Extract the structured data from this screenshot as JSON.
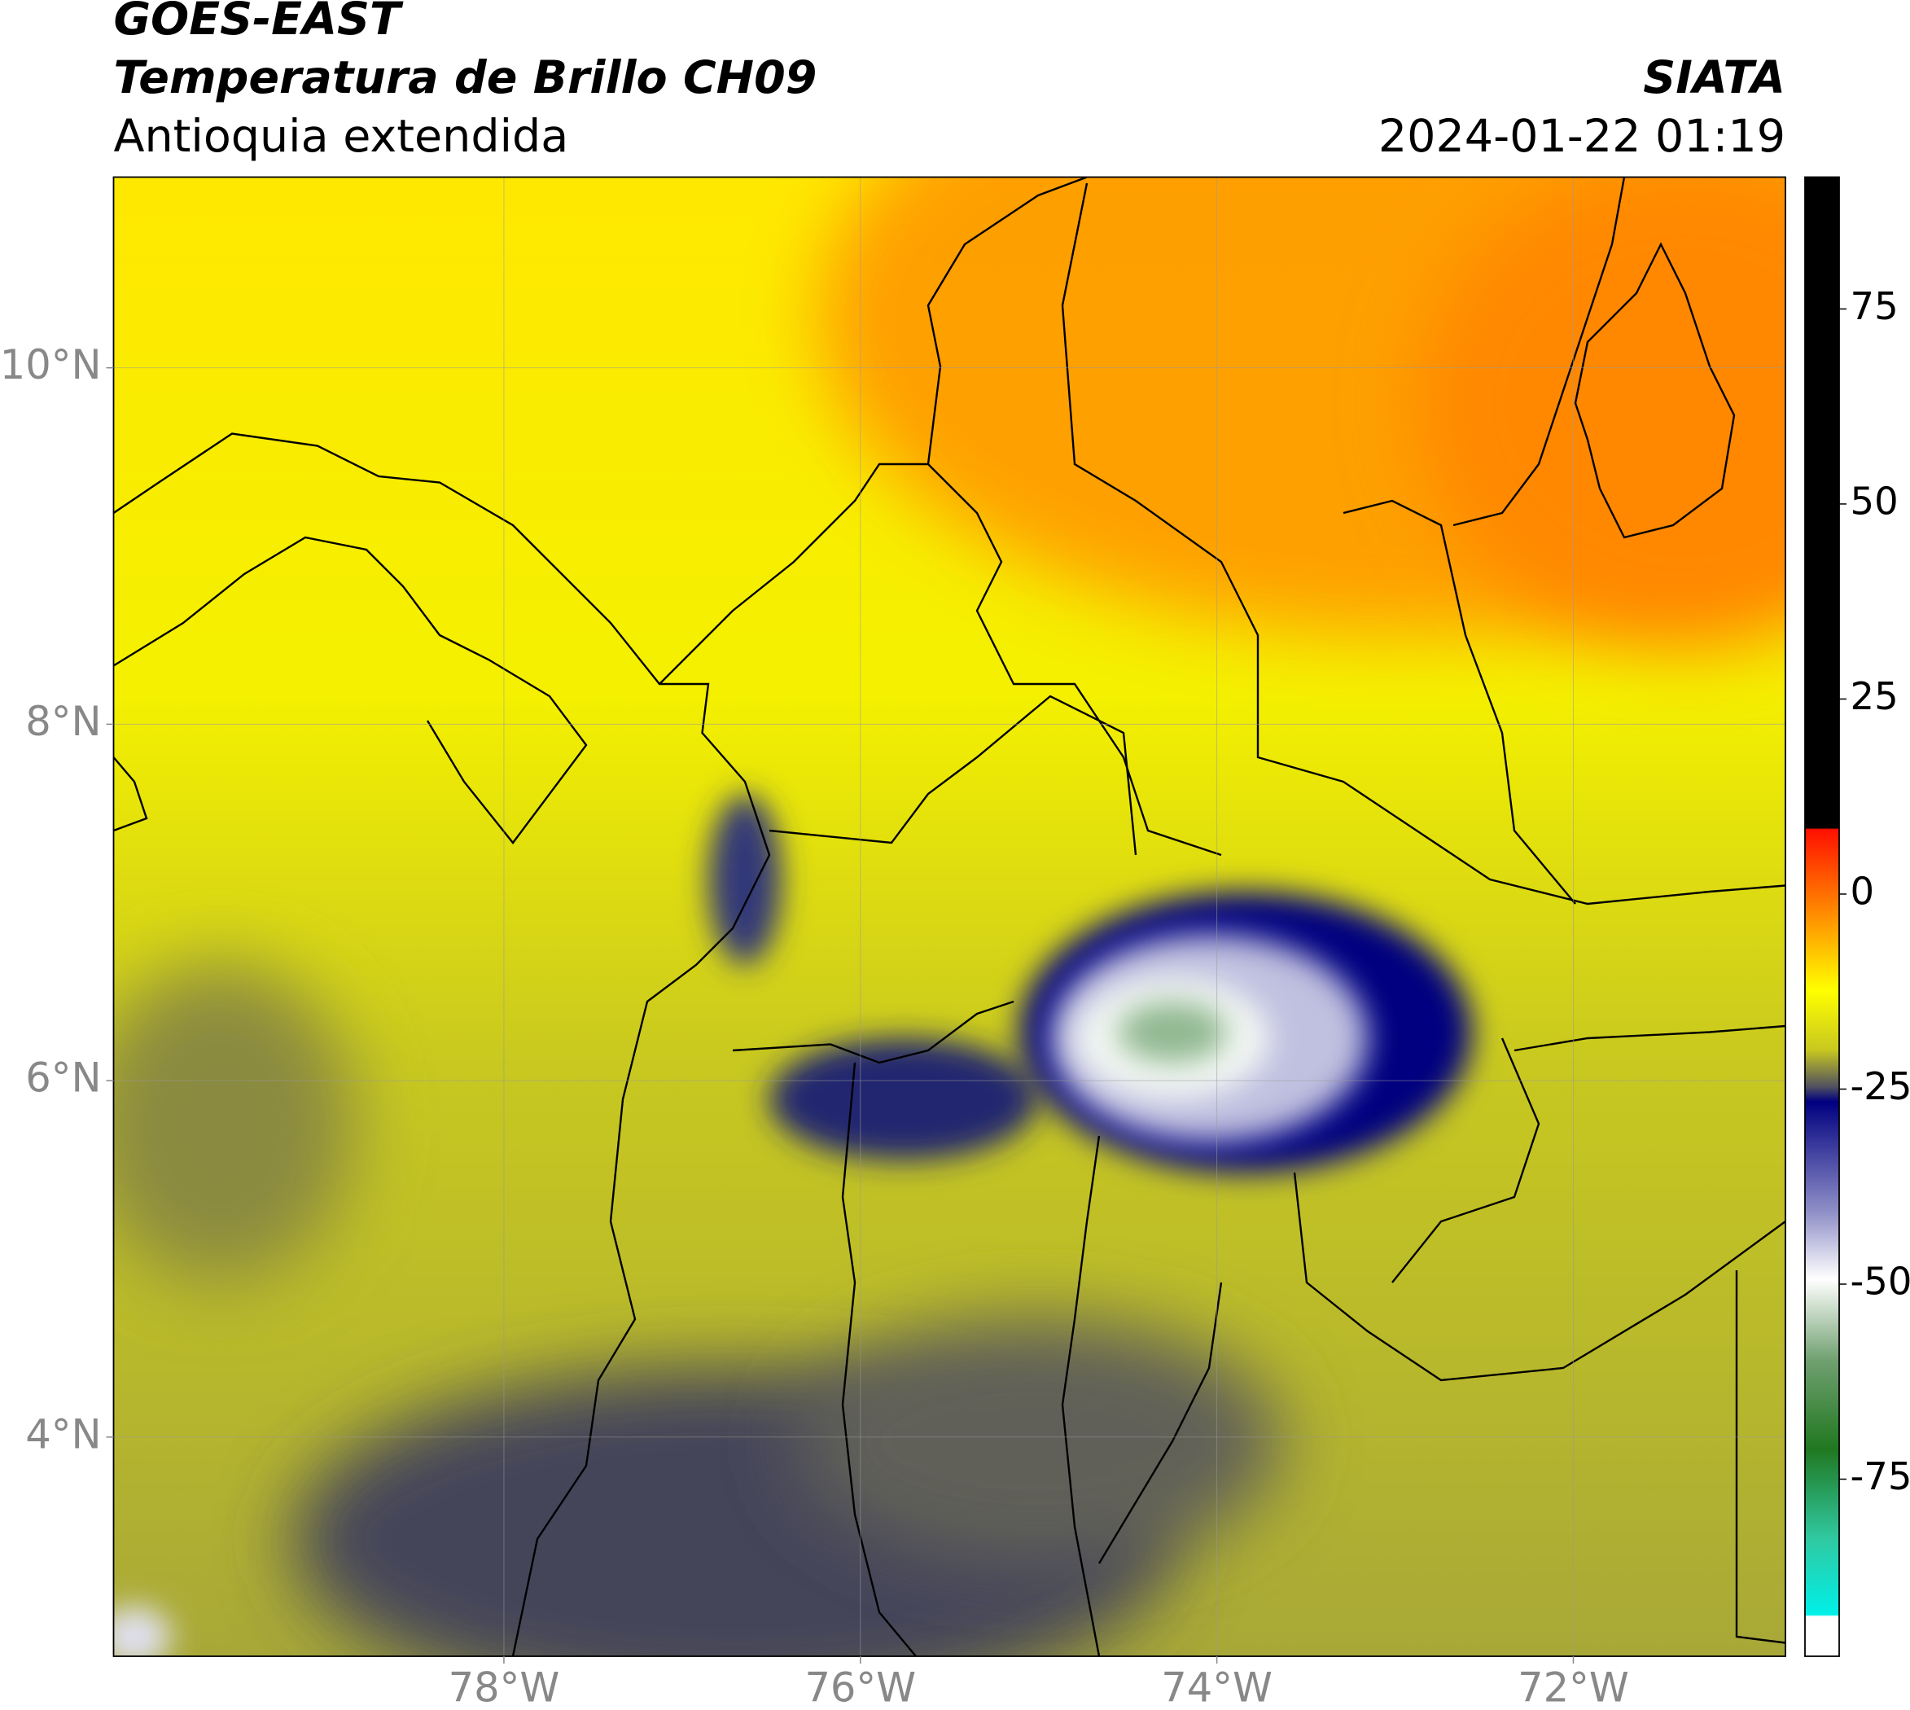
{
  "header": {
    "title": "GOES-EAST",
    "subtitle": "Temperatura de Brillo CH09",
    "region": "Antioquia extendida",
    "source": "SIATA",
    "datetime": "2024-01-22 01:19"
  },
  "map": {
    "xlim": [
      -80.19,
      -70.81
    ],
    "ylim": [
      2.77,
      11.07
    ],
    "xticks": [
      {
        "value": -78,
        "label": "78°W"
      },
      {
        "value": -76,
        "label": "76°W"
      },
      {
        "value": -74,
        "label": "74°W"
      },
      {
        "value": -72,
        "label": "72°W"
      }
    ],
    "yticks": [
      {
        "value": 4,
        "label": "4°N"
      },
      {
        "value": 6,
        "label": "6°N"
      },
      {
        "value": 8,
        "label": "8°N"
      },
      {
        "value": 10,
        "label": "10°N"
      }
    ],
    "grid": true
  },
  "colorbar": {
    "lim": [
      -97.7,
      91.9
    ],
    "ticks": [
      -75,
      -50,
      -25,
      0,
      25,
      50,
      75
    ]
  }
}
